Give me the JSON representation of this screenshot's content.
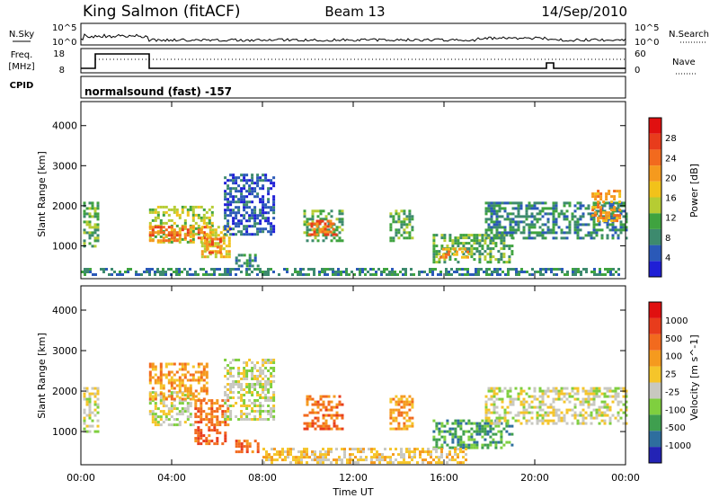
{
  "header": {
    "station": "King Salmon (fitACF)",
    "beam": "Beam 13",
    "date": "14/Sep/2010"
  },
  "small_panels": {
    "nsky_label": "N.Sky",
    "nsearch_label": "N.Search",
    "freq_label": "Freq.",
    "freq_unit": "[MHz]",
    "nave_label": "Nave",
    "cpid_label": "CPID",
    "noise_ticks": [
      "10^5",
      "10^0"
    ],
    "freq_ticks": [
      "18",
      "8"
    ],
    "nave_ticks": [
      "60",
      "0"
    ],
    "cpid_text": "normalsound (fast) -157"
  },
  "axes": {
    "xlabel": "Time UT",
    "ylabel": "Slant Range [km]",
    "x_ticks": [
      "00:00",
      "04:00",
      "08:00",
      "12:00",
      "16:00",
      "20:00",
      "00:00"
    ],
    "y_ticks": [
      "1000",
      "2000",
      "3000",
      "4000"
    ]
  },
  "chart_data": [
    {
      "type": "heatmap",
      "title": "",
      "xlabel": "",
      "ylabel": "Slant Range [km]",
      "xlim": [
        0,
        24
      ],
      "ylim": [
        180,
        4600
      ],
      "colorbar": {
        "label": "Power [dB]",
        "ticks": [
          "4",
          "8",
          "12",
          "16",
          "20",
          "24",
          "28"
        ],
        "colors": [
          "#1f1fd6",
          "#2a59b8",
          "#3d8a6e",
          "#3fa33f",
          "#b6cc33",
          "#f2c21a",
          "#f59a1e",
          "#f26a1e",
          "#e83c1c",
          "#e01010"
        ]
      },
      "regions": [
        {
          "t": [
            0.1,
            0.7
          ],
          "r": [
            1000,
            2100
          ],
          "level": 3
        },
        {
          "t": [
            3.0,
            5.8
          ],
          "r": [
            1100,
            2000
          ],
          "level": 4
        },
        {
          "t": [
            3.0,
            5.5
          ],
          "r": [
            1150,
            1500
          ],
          "level": 7
        },
        {
          "t": [
            5.3,
            6.5
          ],
          "r": [
            700,
            1500
          ],
          "level": 5
        },
        {
          "t": [
            5.5,
            6.2
          ],
          "r": [
            800,
            1200
          ],
          "level": 7
        },
        {
          "t": [
            6.3,
            8.5
          ],
          "r": [
            1300,
            2800
          ],
          "level": 1
        },
        {
          "t": [
            6.8,
            7.8
          ],
          "r": [
            500,
            800
          ],
          "level": 2
        },
        {
          "t": [
            9.8,
            11.5
          ],
          "r": [
            1100,
            1900
          ],
          "level": 3
        },
        {
          "t": [
            10.0,
            11.2
          ],
          "r": [
            1250,
            1650
          ],
          "level": 7
        },
        {
          "t": [
            13.6,
            14.6
          ],
          "r": [
            1100,
            1900
          ],
          "level": 3
        },
        {
          "t": [
            15.5,
            19.0
          ],
          "r": [
            600,
            1300
          ],
          "level": 3
        },
        {
          "t": [
            15.8,
            17.0
          ],
          "r": [
            700,
            950
          ],
          "level": 6
        },
        {
          "t": [
            17.8,
            24.0
          ],
          "r": [
            1200,
            2100
          ],
          "level": 2
        },
        {
          "t": [
            22.5,
            23.8
          ],
          "r": [
            1600,
            2400
          ],
          "level": 6
        },
        {
          "t": [
            0.0,
            24.0
          ],
          "r": [
            250,
            450
          ],
          "level": 2
        }
      ]
    },
    {
      "type": "heatmap",
      "title": "",
      "xlabel": "Time UT",
      "ylabel": "Slant Range [km]",
      "xlim": [
        0,
        24
      ],
      "ylim": [
        180,
        4600
      ],
      "colorbar": {
        "label": "Velocity [m s^-1]",
        "ticks": [
          "1000",
          "500",
          "100",
          "25",
          "-25",
          "-100",
          "-500",
          "-1000"
        ],
        "colors": [
          "#2323b5",
          "#2e6e9e",
          "#3f9f4f",
          "#7fcf3f",
          "#c8c8c0",
          "#f5c52a",
          "#f59a1e",
          "#f26a1e",
          "#e83c1c",
          "#e01010"
        ]
      },
      "regions": [
        {
          "t": [
            0.1,
            0.7
          ],
          "r": [
            1000,
            2100
          ],
          "level": 4
        },
        {
          "t": [
            3.0,
            5.0
          ],
          "r": [
            1200,
            2000
          ],
          "level": 4
        },
        {
          "t": [
            3.0,
            5.5
          ],
          "r": [
            1800,
            2700
          ],
          "level": 6
        },
        {
          "t": [
            5.0,
            6.5
          ],
          "r": [
            700,
            1800
          ],
          "level": 7
        },
        {
          "t": [
            6.3,
            8.5
          ],
          "r": [
            1300,
            2800
          ],
          "level": 4
        },
        {
          "t": [
            6.8,
            7.8
          ],
          "r": [
            500,
            800
          ],
          "level": 7
        },
        {
          "t": [
            9.8,
            11.5
          ],
          "r": [
            1100,
            1900
          ],
          "level": 7
        },
        {
          "t": [
            13.6,
            14.6
          ],
          "r": [
            1100,
            1900
          ],
          "level": 6
        },
        {
          "t": [
            15.5,
            19.0
          ],
          "r": [
            600,
            1300
          ],
          "level": 2
        },
        {
          "t": [
            17.8,
            24.0
          ],
          "r": [
            1200,
            2100
          ],
          "level": 4
        },
        {
          "t": [
            8.0,
            17.0
          ],
          "r": [
            250,
            600
          ],
          "level": 5
        }
      ]
    }
  ]
}
